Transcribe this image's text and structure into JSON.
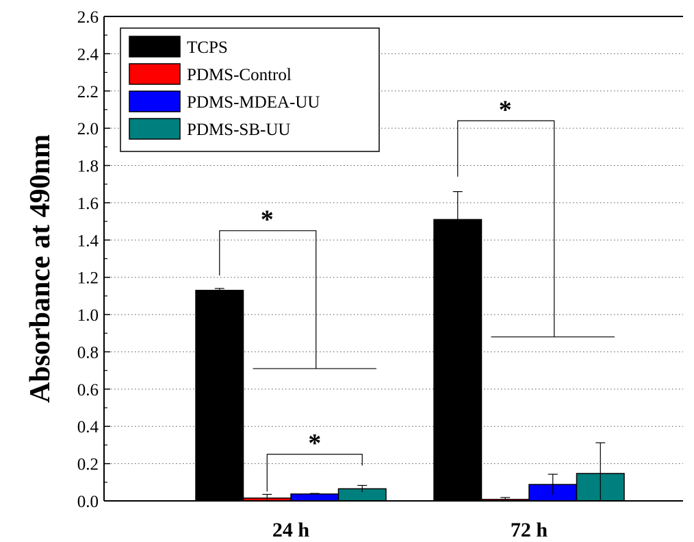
{
  "chart_data": {
    "type": "bar",
    "xlabel": "",
    "ylabel": "Absorbance at 490nm",
    "ylim": [
      0,
      2.6
    ],
    "yticks": [
      "0.0",
      "0.2",
      "0.4",
      "0.6",
      "0.8",
      "1.0",
      "1.2",
      "1.4",
      "1.6",
      "1.8",
      "2.0",
      "2.2",
      "2.4",
      "2.6"
    ],
    "categories": [
      "24 h",
      "72 h"
    ],
    "grid": "horizontal dotted",
    "legend_position": "top-left",
    "series": [
      {
        "name": "TCPS",
        "color": "#000000",
        "values": [
          1.13,
          1.51
        ],
        "errors": [
          0.01,
          0.15
        ]
      },
      {
        "name": "PDMS-Control",
        "color": "#ff0000",
        "values": [
          0.015,
          0.008
        ],
        "errors": [
          0.02,
          0.01
        ]
      },
      {
        "name": "PDMS-MDEA-UU",
        "color": "#0000ff",
        "values": [
          0.037,
          0.088
        ],
        "errors": [
          0.003,
          0.055
        ]
      },
      {
        "name": "PDMS-SB-UU",
        "color": "#007f7f",
        "values": [
          0.065,
          0.147
        ],
        "errors": [
          0.018,
          0.165
        ]
      }
    ],
    "annotations": [
      {
        "text": "*",
        "group": "24 h",
        "from": "TCPS",
        "to": "PDMS-SB-UU"
      },
      {
        "text": "*",
        "group": "24 h",
        "from": "PDMS-Control",
        "to": "PDMS-SB-UU"
      },
      {
        "text": "*",
        "group": "72 h",
        "from": "TCPS",
        "to": "PDMS-SB-UU"
      }
    ]
  }
}
